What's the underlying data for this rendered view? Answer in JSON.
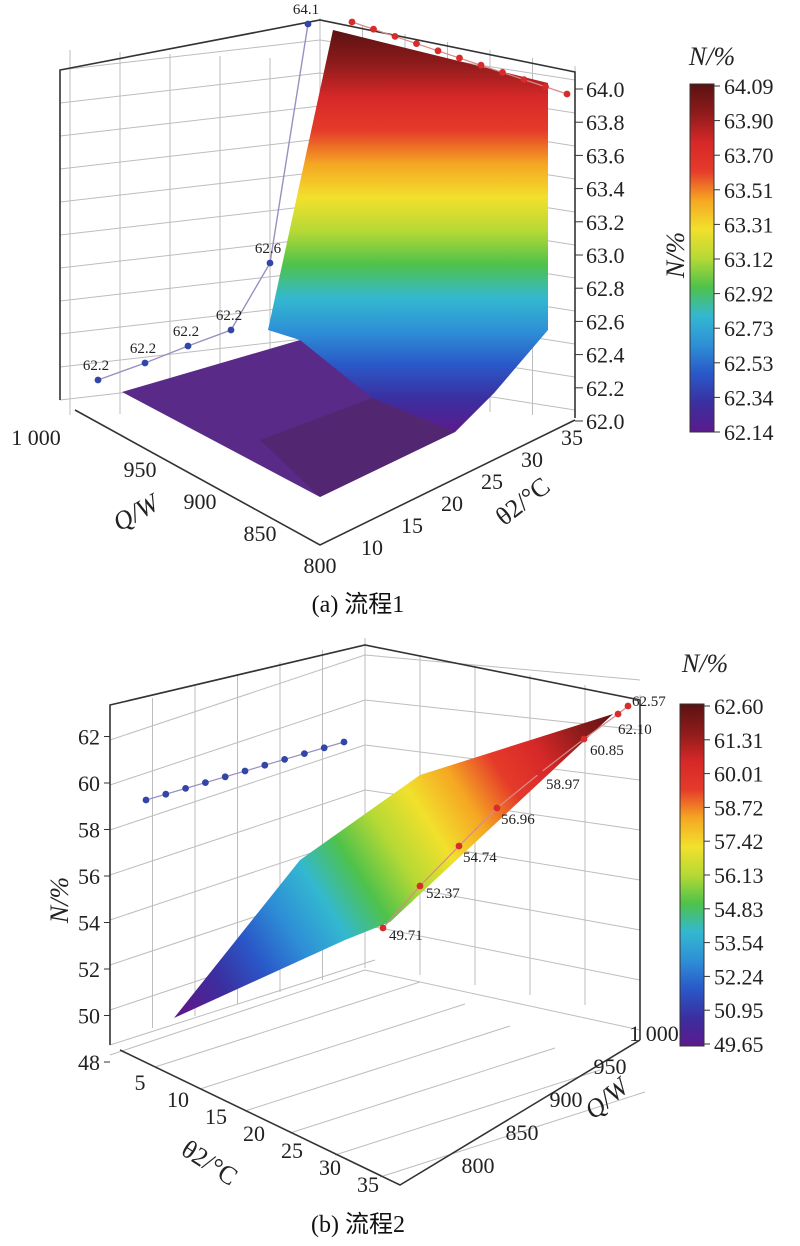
{
  "chart_data": [
    {
      "type": "surface3d",
      "caption": "(a) 流程1",
      "z_axis": {
        "label": "N/%",
        "ticks": [
          "62.0",
          "62.2",
          "62.4",
          "62.6",
          "62.8",
          "63.0",
          "63.2",
          "63.4",
          "63.6",
          "63.8",
          "64.0"
        ],
        "range": [
          62.0,
          64.1
        ]
      },
      "x_axis": {
        "label": "Q/W",
        "ticks": [
          "1 000",
          "950",
          "900",
          "850",
          "800"
        ]
      },
      "y_axis": {
        "label": "θ2/°C",
        "ticks": [
          "10",
          "15",
          "20",
          "25",
          "30",
          "35"
        ]
      },
      "colorbar": {
        "title": "N/%",
        "ticks": [
          "64.09",
          "63.90",
          "63.70",
          "63.51",
          "63.31",
          "63.12",
          "62.92",
          "62.73",
          "62.53",
          "62.34",
          "62.14"
        ]
      },
      "projection_Q": {
        "labels": [
          "62.2",
          "62.2",
          "62.2",
          "62.2",
          "62.6",
          "64.1"
        ],
        "values": [
          62.2,
          62.2,
          62.2,
          62.2,
          62.6,
          64.1
        ]
      },
      "projection_theta_points": 11,
      "surface": {
        "flat_level": 62.2,
        "max_level": 64.09
      }
    },
    {
      "type": "surface3d",
      "caption": "(b) 流程2",
      "z_axis": {
        "label": "N/%",
        "ticks": [
          "48",
          "50",
          "52",
          "54",
          "56",
          "58",
          "60",
          "62"
        ],
        "range": [
          48,
          63
        ]
      },
      "x_axis": {
        "label": "θ2/°C",
        "ticks": [
          "5",
          "10",
          "15",
          "20",
          "25",
          "30",
          "35"
        ]
      },
      "y_axis": {
        "label": "Q/W",
        "ticks": [
          "800",
          "850",
          "900",
          "950",
          "1 000"
        ]
      },
      "colorbar": {
        "title": "N/%",
        "ticks": [
          "62.60",
          "61.31",
          "60.01",
          "58.72",
          "57.42",
          "56.13",
          "54.83",
          "53.54",
          "52.24",
          "50.95",
          "49.65"
        ]
      },
      "projection_Q": {
        "labels": [
          "49.71",
          "52.37",
          "54.74",
          "56.96",
          "58.97",
          "60.85",
          "62.10",
          "62.57"
        ],
        "values": [
          49.71,
          52.37,
          54.74,
          56.96,
          58.97,
          60.85,
          62.1,
          62.57
        ]
      },
      "projection_theta_points": 11,
      "surface": {
        "min_level": 49.65,
        "max_level": 62.6
      }
    }
  ],
  "colors": {
    "gradient": [
      "#5b1a8c",
      "#3b2fa0",
      "#2a58c8",
      "#2e8fd6",
      "#33b8d0",
      "#4fc24a",
      "#b6d935",
      "#f2e02c",
      "#f5a623",
      "#e53b2a",
      "#d62828",
      "#8e1b1b",
      "#5a1212"
    ],
    "blue_points": "#3346a8",
    "red_points": "#d62c2c"
  }
}
